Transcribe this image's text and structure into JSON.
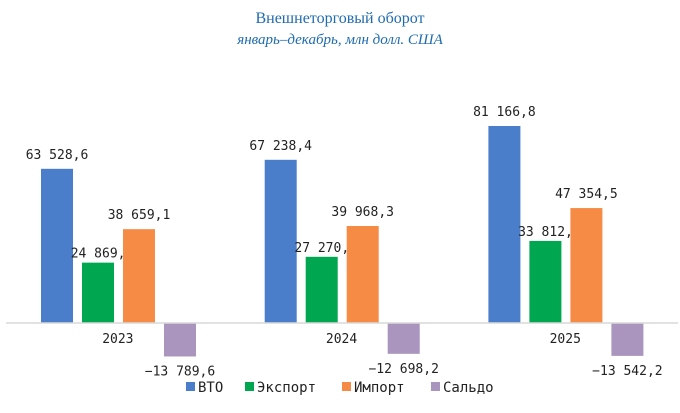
{
  "chart_data": {
    "type": "bar",
    "title": "Внешнеторговый оборот",
    "subtitle": "январь–декабрь, млн долл. США",
    "categories": [
      "2023",
      "2024",
      "2025"
    ],
    "series": [
      {
        "name": "ВТО",
        "color": "#4a7ecb",
        "values": [
          63528.6,
          67238.4,
          81166.8
        ],
        "labels": [
          "63 528,6",
          "67 238,4",
          "81 166,8"
        ]
      },
      {
        "name": "Экспорт",
        "color": "#00a650",
        "values": [
          24869.5,
          27270.1,
          33812.3
        ],
        "labels": [
          "24 869,5",
          "27 270,1",
          "33 812,3"
        ]
      },
      {
        "name": "Импорт",
        "color": "#f58b45",
        "values": [
          38659.1,
          39968.3,
          47354.5
        ],
        "labels": [
          "38 659,1",
          "39 968,3",
          "47 354,5"
        ]
      },
      {
        "name": "Сальдо",
        "color": "#a995bd",
        "values": [
          -13789.6,
          -12698.2,
          -13542.2
        ],
        "labels": [
          "−13 789,6",
          "−12 698,2",
          "−13 542,2"
        ]
      }
    ],
    "legend_position": "bottom",
    "grid": false
  }
}
